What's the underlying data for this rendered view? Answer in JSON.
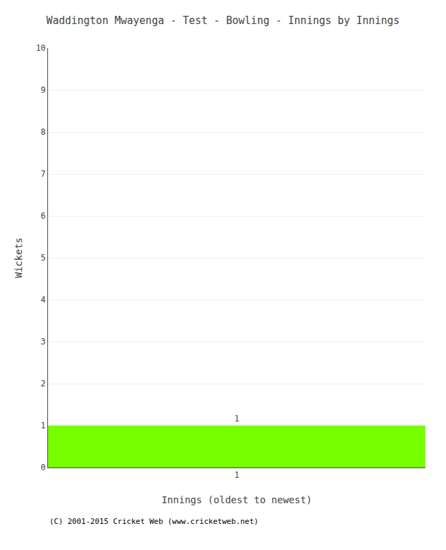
{
  "chart_data": {
    "type": "bar",
    "title": "Waddington Mwayenga - Test - Bowling - Innings by Innings",
    "xlabel": "Innings (oldest to newest)",
    "ylabel": "Wickets",
    "categories": [
      "1"
    ],
    "values": [
      1
    ],
    "color": "#77ff00",
    "ylim": [
      0,
      10
    ],
    "yticks": [
      0,
      1,
      2,
      3,
      4,
      5,
      6,
      7,
      8,
      9,
      10
    ],
    "grid": true,
    "data_labels": true,
    "footer": "(C) 2001-2015 Cricket Web (www.cricketweb.net)"
  }
}
